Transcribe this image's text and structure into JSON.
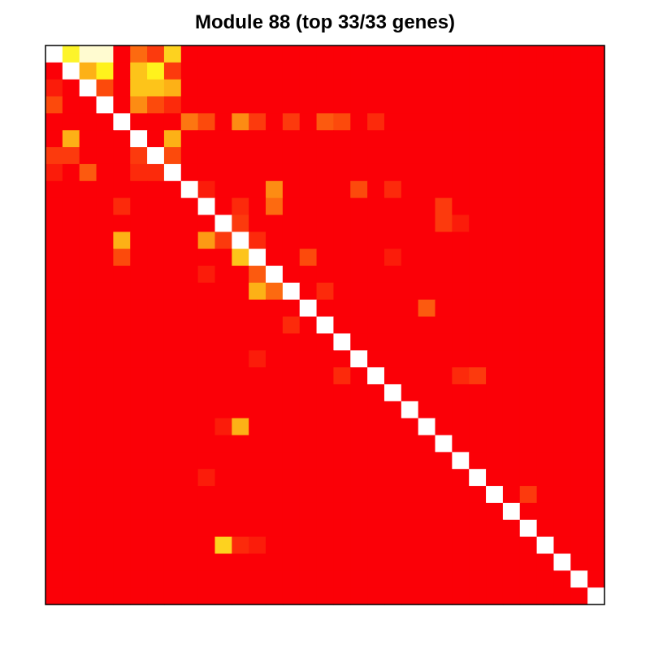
{
  "chart_data": {
    "type": "heatmap",
    "title": "Module 88 (top 33/33 genes)",
    "n_rows": 33,
    "n_cols": 33,
    "scale": "white (high) - yellow - orange - red (low)",
    "colors": {
      "base": "#fb0007",
      "diagonal": "#ffffff",
      "frame": "#000000"
    },
    "cells": [
      [
        0,
        1,
        "#fdf42a"
      ],
      [
        0,
        2,
        "#fffbd0"
      ],
      [
        0,
        3,
        "#fffbd0"
      ],
      [
        0,
        5,
        "#fd6a10"
      ],
      [
        0,
        6,
        "#fc3a0d"
      ],
      [
        0,
        7,
        "#fdd21f"
      ],
      [
        1,
        2,
        "#fdb116"
      ],
      [
        1,
        3,
        "#fff21c"
      ],
      [
        1,
        5,
        "#fdc41a"
      ],
      [
        1,
        6,
        "#fff21c"
      ],
      [
        1,
        7,
        "#fc3a0d"
      ],
      [
        2,
        0,
        "#fb1c0a"
      ],
      [
        2,
        3,
        "#fc4a0c"
      ],
      [
        2,
        5,
        "#fdc41a"
      ],
      [
        2,
        6,
        "#fdc41a"
      ],
      [
        2,
        7,
        "#fdb116"
      ],
      [
        3,
        0,
        "#fc4a0c"
      ],
      [
        3,
        5,
        "#fd8c13"
      ],
      [
        3,
        6,
        "#fc4a0c"
      ],
      [
        3,
        7,
        "#fc2a0b"
      ],
      [
        4,
        8,
        "#fd7611"
      ],
      [
        4,
        9,
        "#fc4a0c"
      ],
      [
        4,
        11,
        "#fd8c13"
      ],
      [
        4,
        12,
        "#fc3a0d"
      ],
      [
        4,
        14,
        "#fc3a0d"
      ],
      [
        4,
        16,
        "#fc5a0f"
      ],
      [
        4,
        17,
        "#fc4a0c"
      ],
      [
        4,
        19,
        "#fc2a0b"
      ],
      [
        5,
        1,
        "#fdb116"
      ],
      [
        5,
        7,
        "#fdb116"
      ],
      [
        6,
        0,
        "#fc3a0d"
      ],
      [
        6,
        1,
        "#fc3a0d"
      ],
      [
        6,
        5,
        "#fc3a0d"
      ],
      [
        6,
        7,
        "#fc4a0c"
      ],
      [
        7,
        0,
        "#fb1c0a"
      ],
      [
        7,
        2,
        "#fc5a0f"
      ],
      [
        7,
        5,
        "#fc2a0b"
      ],
      [
        7,
        6,
        "#fc2a0b"
      ],
      [
        8,
        9,
        "#fb1c0a"
      ],
      [
        8,
        13,
        "#fd8c13"
      ],
      [
        8,
        18,
        "#fc4a0c"
      ],
      [
        8,
        20,
        "#fc2a0b"
      ],
      [
        9,
        4,
        "#fc2a0b"
      ],
      [
        9,
        11,
        "#fc2a0b"
      ],
      [
        9,
        13,
        "#fd6a10"
      ],
      [
        9,
        23,
        "#fc3a0d"
      ],
      [
        10,
        11,
        "#fc3a0d"
      ],
      [
        10,
        23,
        "#fc3a0d"
      ],
      [
        10,
        24,
        "#fb1c0a"
      ],
      [
        11,
        4,
        "#fdb116"
      ],
      [
        11,
        9,
        "#fd9a14"
      ],
      [
        11,
        10,
        "#fc3a0d"
      ],
      [
        11,
        12,
        "#fc2a0b"
      ],
      [
        12,
        4,
        "#fc4a0c"
      ],
      [
        12,
        11,
        "#fdc41a"
      ],
      [
        12,
        15,
        "#fc4a0c"
      ],
      [
        12,
        20,
        "#fb1c0a"
      ],
      [
        13,
        9,
        "#fb1c0a"
      ],
      [
        13,
        12,
        "#fc5a0f"
      ],
      [
        14,
        12,
        "#fdb116"
      ],
      [
        14,
        13,
        "#fd6a10"
      ],
      [
        14,
        16,
        "#fc2a0b"
      ],
      [
        15,
        22,
        "#fc5a0f"
      ],
      [
        16,
        14,
        "#fc2a0b"
      ],
      [
        18,
        12,
        "#fb1c0a"
      ],
      [
        19,
        17,
        "#fc2a0b"
      ],
      [
        19,
        24,
        "#fc2a0b"
      ],
      [
        19,
        25,
        "#fc3a0d"
      ],
      [
        22,
        10,
        "#fb1c0a"
      ],
      [
        22,
        11,
        "#fdb116"
      ],
      [
        25,
        9,
        "#fb1c0a"
      ],
      [
        26,
        28,
        "#fc3a0d"
      ],
      [
        29,
        10,
        "#fdd21f"
      ],
      [
        29,
        11,
        "#fc2a0b"
      ],
      [
        29,
        12,
        "#fb1c0a"
      ]
    ]
  }
}
